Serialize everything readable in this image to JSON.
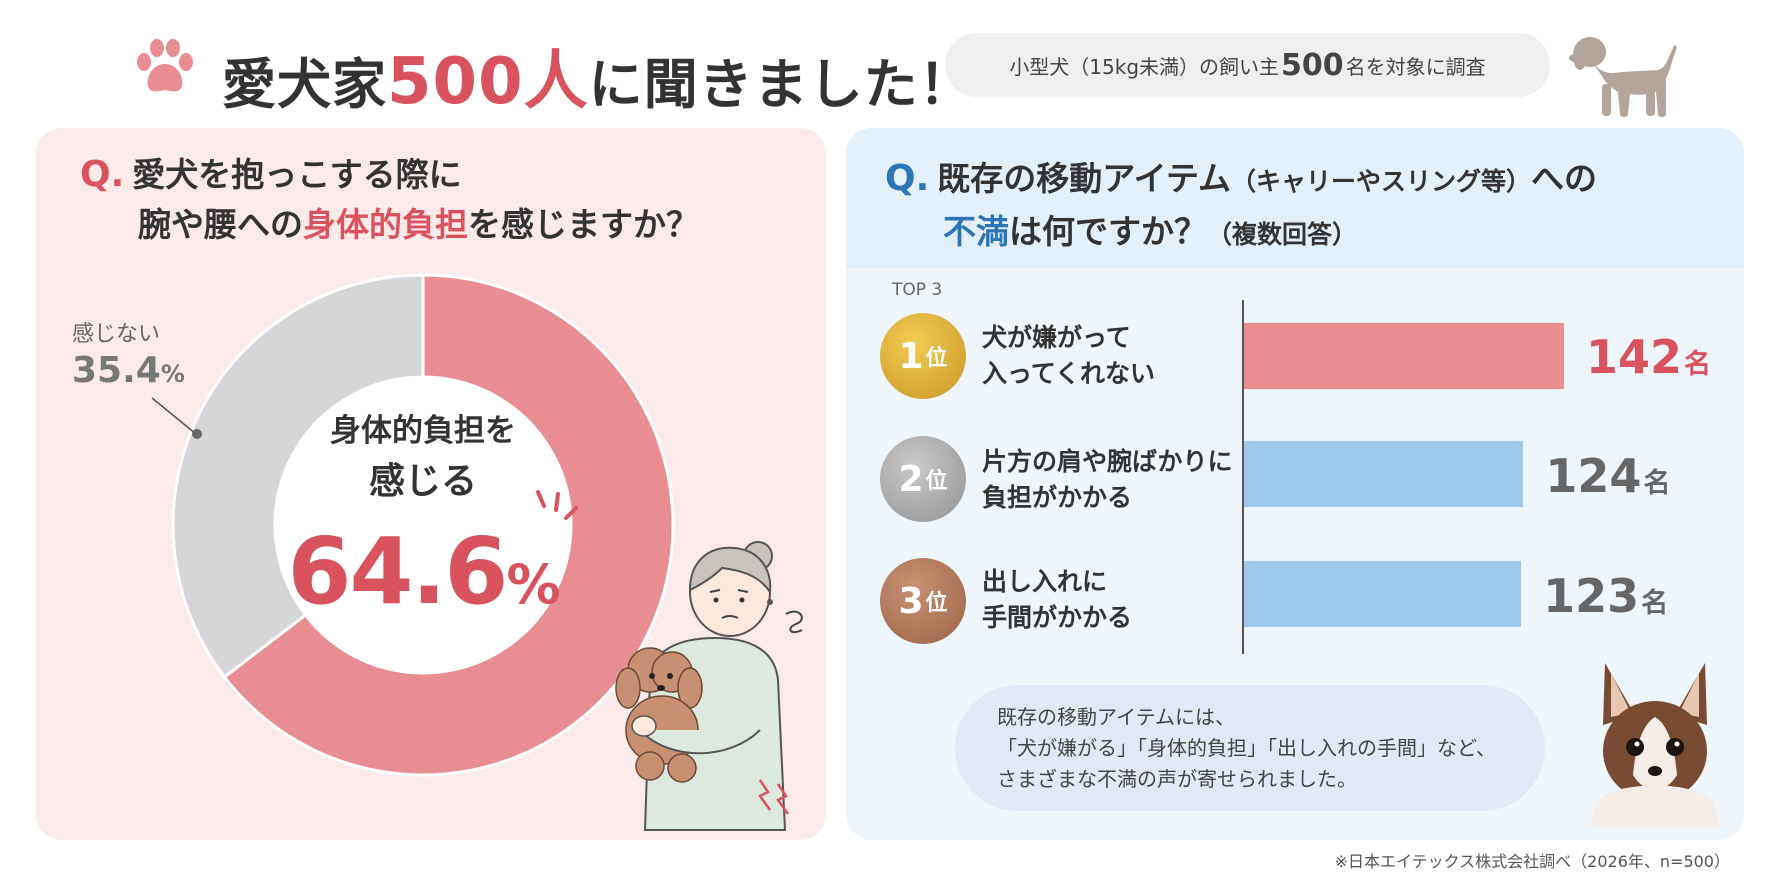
{
  "header": {
    "title_pre": "愛犬家",
    "title_num": "500人",
    "title_post": "に聞きました！",
    "subtitle_pre": "小型犬（15kg未満）の飼い主",
    "subtitle_num": "500",
    "subtitle_post": "名を対象に調査"
  },
  "left": {
    "q_mark": "Q.",
    "q_line1": "愛犬を抱っこする際に",
    "q_line2_pre": "腕や腰への",
    "q_line2_hl": "身体的負担",
    "q_line2_post": "を感じますか？",
    "center_line1": "身体的負担を",
    "center_line2": "感じる",
    "center_value": "64.6",
    "center_unit": "%",
    "other_label": "感じない",
    "other_value": "35.4",
    "other_unit": "%"
  },
  "right": {
    "q_mark": "Q.",
    "q_line1": "既存の移動アイテム",
    "q_line1_small": "（キャリーやスリング等）",
    "q_line1_post": "への",
    "q_line2_hl": "不満",
    "q_line2_post": "は何ですか？",
    "q_line2_small": "（複数回答）",
    "top_label": "TOP 3",
    "rank_unit": "位",
    "count_unit": "名",
    "comment_lines": [
      "既存の移動アイテムには、",
      "「犬が嫌がる」「身体的負担」「出し入れの手間」など、",
      "さまざまな不満の声が寄せられました。"
    ]
  },
  "footnote": "※日本エイテックス株式会社調べ（2026年、n=500）",
  "colors": {
    "accent_red": "#d9535f",
    "donut_red": "#e88e93",
    "donut_gray": "#d6d6d9",
    "bar_red": "#e88e93",
    "bar_blue": "#9ec9ec",
    "accent_blue": "#2b75b8"
  },
  "icons": [
    "paw-icon",
    "dog-silhouette-icon",
    "woman-holding-dog-illustration",
    "chihuahua-photo"
  ],
  "chart_data": [
    {
      "type": "pie",
      "subtype": "donut",
      "categories": [
        "感じる",
        "感じない"
      ],
      "values": [
        64.6,
        35.4
      ],
      "unit": "%"
    },
    {
      "type": "bar",
      "orientation": "horizontal",
      "ranks": [
        "1",
        "2",
        "3"
      ],
      "categories": [
        "犬が嫌がって入ってくれない",
        "片方の肩や腕ばかりに負担がかかる",
        "出し入れに手間がかかる"
      ],
      "category_lines": [
        [
          "犬が嫌がって",
          "入ってくれない"
        ],
        [
          "片方の肩や腕ばかりに",
          "負担がかかる"
        ],
        [
          "出し入れに",
          "手間がかかる"
        ]
      ],
      "values": [
        142,
        124,
        123
      ],
      "unit": "名",
      "xlim": [
        0,
        150
      ]
    }
  ]
}
